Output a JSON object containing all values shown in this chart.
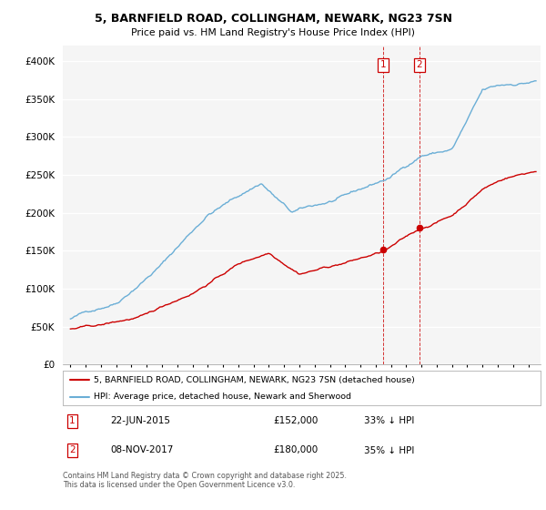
{
  "title": "5, BARNFIELD ROAD, COLLINGHAM, NEWARK, NG23 7SN",
  "subtitle": "Price paid vs. HM Land Registry's House Price Index (HPI)",
  "legend_line1": "5, BARNFIELD ROAD, COLLINGHAM, NEWARK, NG23 7SN (detached house)",
  "legend_line2": "HPI: Average price, detached house, Newark and Sherwood",
  "footnote": "Contains HM Land Registry data © Crown copyright and database right 2025.\nThis data is licensed under the Open Government Licence v3.0.",
  "marker1_date": "22-JUN-2015",
  "marker1_price": "£152,000",
  "marker1_hpi": "33% ↓ HPI",
  "marker2_date": "08-NOV-2017",
  "marker2_price": "£180,000",
  "marker2_hpi": "35% ↓ HPI",
  "hpi_color": "#6aaed6",
  "price_color": "#cc0000",
  "marker1_x": 2015.47,
  "marker2_x": 2017.85,
  "marker1_y_red": 152000,
  "marker2_y_red": 180000,
  "ylim": [
    0,
    420000
  ],
  "xlim_start": 1994.5,
  "xlim_end": 2025.8,
  "background_color": "#ffffff",
  "plot_bg_color": "#f5f5f5",
  "grid_color": "#cccccc"
}
